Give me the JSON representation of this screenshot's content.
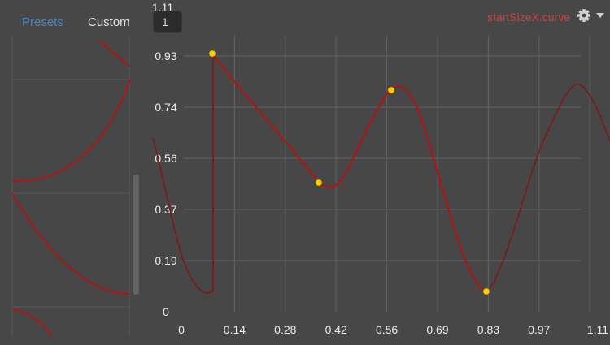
{
  "tabs": {
    "presets_label": "Presets",
    "custom_label": "Custom"
  },
  "value_field": {
    "value": "1"
  },
  "curve": {
    "name": "startSizeX.curve",
    "color": "#b01515",
    "faded_color": "#7a1a1a",
    "keys": [
      {
        "time": 0.08,
        "value": 0.93
      },
      {
        "time": 0.38,
        "value": 0.46
      },
      {
        "time": 0.58,
        "value": 0.8
      },
      {
        "time": 0.84,
        "value": 0.07
      }
    ]
  },
  "axes": {
    "x_ticks": [
      "0",
      "0.14",
      "0.28",
      "0.42",
      "0.56",
      "0.69",
      "0.83",
      "0.97",
      "1.11"
    ],
    "y_ticks": [
      "0",
      "0.19",
      "0.37",
      "0.56",
      "0.74",
      "0.93",
      "1.11"
    ]
  },
  "icons": {
    "settings": "gear-icon",
    "dropdown": "triangle-down-icon"
  },
  "colors": {
    "background": "#474747",
    "grid": "#5e5e5e",
    "accent_tab": "#4a85cc",
    "handle": "#ffcc00"
  }
}
